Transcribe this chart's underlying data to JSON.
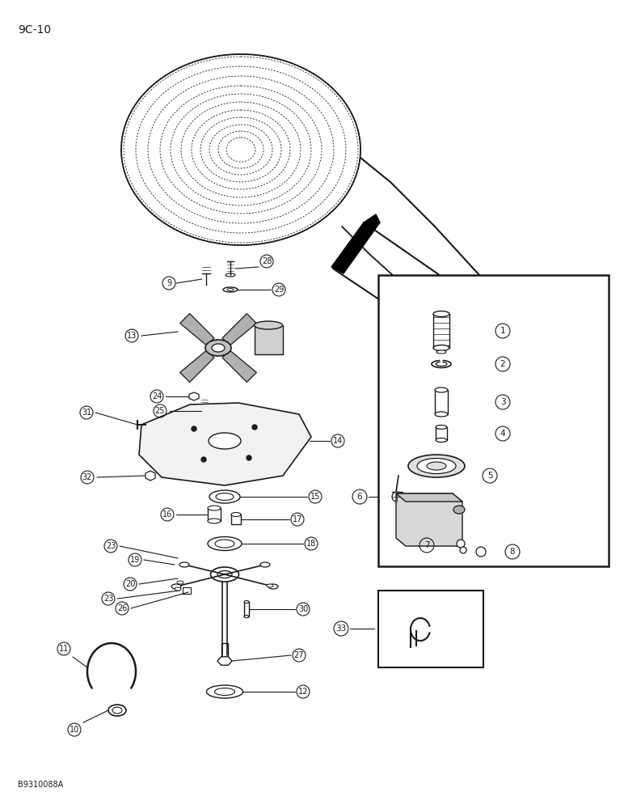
{
  "page_label": "9C-10",
  "footer_label": "B9310088A",
  "bg": "#ffffff",
  "lc": "#1a1a1a",
  "figsize": [
    7.72,
    10.0
  ],
  "dpi": 100
}
